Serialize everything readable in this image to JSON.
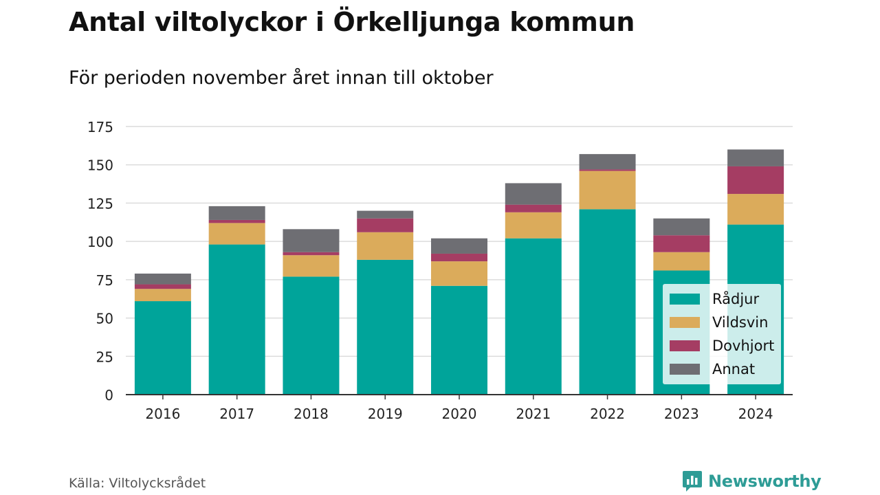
{
  "header": {
    "title": "Antal viltolyckor i Örkelljunga kommun",
    "subtitle": "För perioden november året innan till oktober"
  },
  "footer": {
    "source": "Källa: Viltolycksrådet",
    "brand": "Newsworthy",
    "brand_icon": "newsworthy-logo-icon",
    "brand_color": "#2e9c96"
  },
  "chart_data": {
    "type": "bar",
    "stacked": true,
    "categories": [
      "2016",
      "2017",
      "2018",
      "2019",
      "2020",
      "2021",
      "2022",
      "2023",
      "2024"
    ],
    "series": [
      {
        "name": "Rådjur",
        "color": "#00a49a",
        "values": [
          61,
          98,
          77,
          88,
          71,
          102,
          121,
          81,
          111
        ]
      },
      {
        "name": "Vildsvin",
        "color": "#dbab5b",
        "values": [
          8,
          14,
          14,
          18,
          16,
          17,
          25,
          12,
          20
        ]
      },
      {
        "name": "Dovhjort",
        "color": "#a53d63",
        "values": [
          3,
          2,
          2,
          9,
          5,
          5,
          1,
          11,
          18
        ]
      },
      {
        "name": "Annat",
        "color": "#6e6e73",
        "values": [
          7,
          9,
          15,
          5,
          10,
          14,
          10,
          11,
          11
        ]
      }
    ],
    "ylim": [
      0,
      175
    ],
    "yticks": [
      0,
      25,
      50,
      75,
      100,
      125,
      150,
      175
    ],
    "grid": true,
    "legend": "bottom-right"
  }
}
